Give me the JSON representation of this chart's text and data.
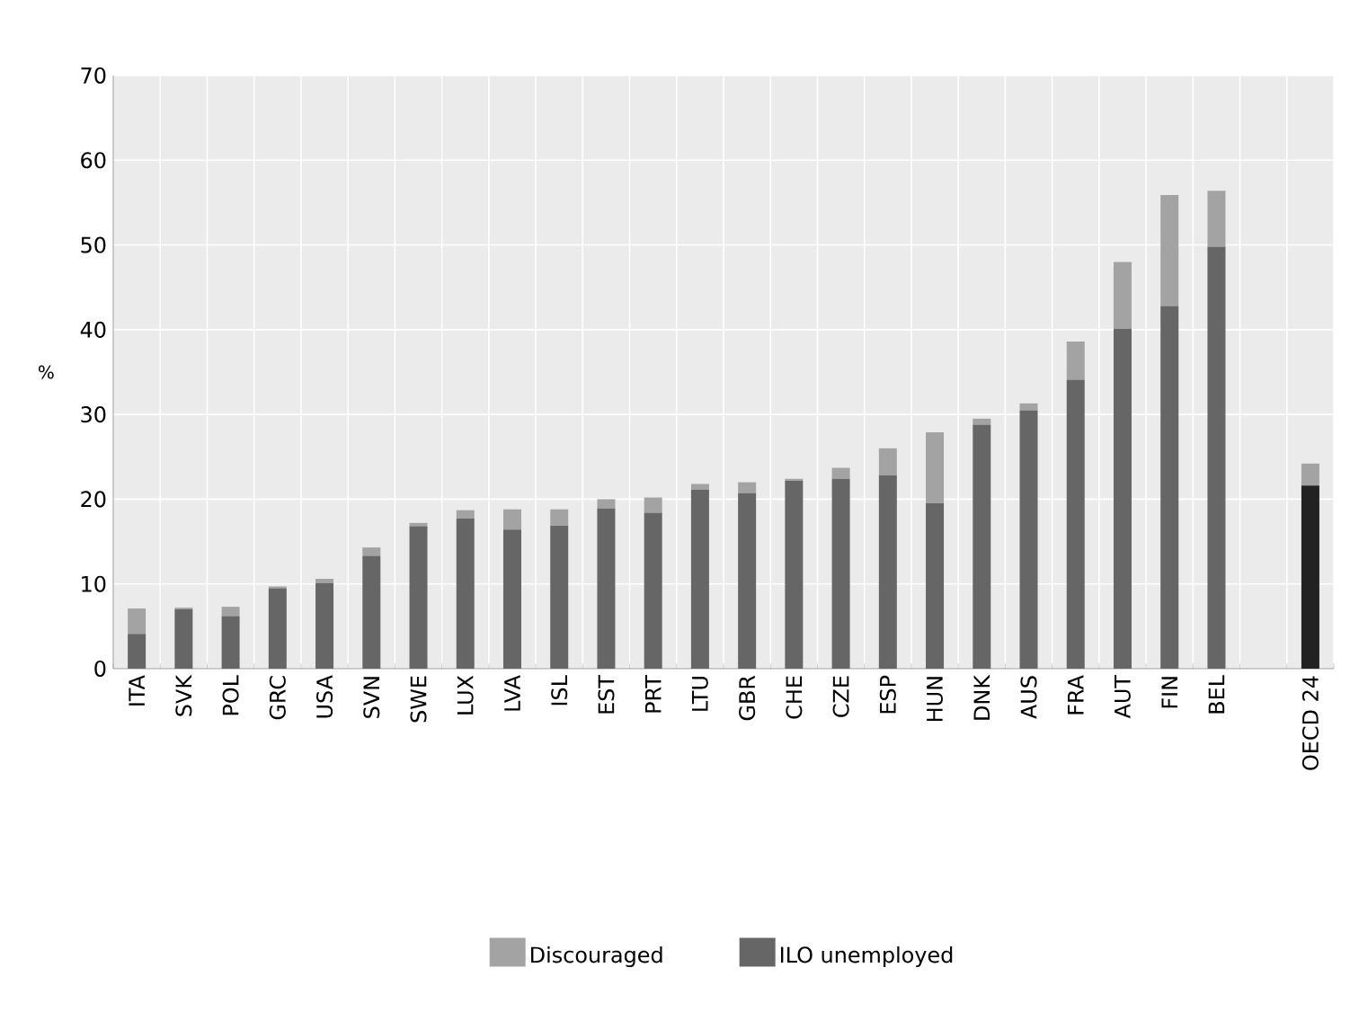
{
  "chart_data": {
    "type": "bar",
    "stacked": true,
    "ylabel": "%",
    "categories": [
      "ITA",
      "SVK",
      "POL",
      "GRC",
      "USA",
      "SVN",
      "SWE",
      "LUX",
      "LVA",
      "ISL",
      "EST",
      "PRT",
      "LTU",
      "GBR",
      "CHE",
      "CZE",
      "ESP",
      "HUN",
      "DNK",
      "AUS",
      "FRA",
      "AUT",
      "FIN",
      "BEL",
      null,
      "OECD 24"
    ],
    "series": [
      {
        "name": "ILO unemployed",
        "color": "#666666",
        "colors": [
          "#666666",
          "#666666",
          "#666666",
          "#666666",
          "#666666",
          "#666666",
          "#666666",
          "#666666",
          "#666666",
          "#666666",
          "#666666",
          "#666666",
          "#666666",
          "#666666",
          "#666666",
          "#666666",
          "#666666",
          "#666666",
          "#666666",
          "#666666",
          "#666666",
          "#666666",
          "#666666",
          "#666666",
          null,
          "#222222"
        ],
        "values": [
          4.1,
          7.0,
          6.2,
          9.5,
          10.1,
          13.3,
          16.8,
          17.7,
          16.4,
          16.9,
          18.9,
          18.4,
          21.1,
          20.7,
          22.2,
          22.4,
          22.8,
          19.5,
          28.8,
          30.5,
          34.1,
          40.1,
          42.8,
          49.8,
          null,
          21.6
        ]
      },
      {
        "name": "Discouraged",
        "color": "#a3a3a3",
        "values": [
          3.0,
          0.2,
          1.1,
          0.2,
          0.5,
          1.0,
          0.4,
          1.0,
          2.4,
          1.9,
          1.1,
          1.8,
          0.7,
          1.3,
          0.2,
          1.3,
          3.2,
          8.4,
          0.7,
          0.8,
          4.5,
          7.9,
          13.1,
          6.6,
          null,
          2.6
        ]
      }
    ],
    "ylim": [
      0,
      70
    ],
    "yticks": [
      0,
      10,
      20,
      30,
      40,
      50,
      60,
      70
    ],
    "grid": true,
    "legend": "bottom"
  }
}
